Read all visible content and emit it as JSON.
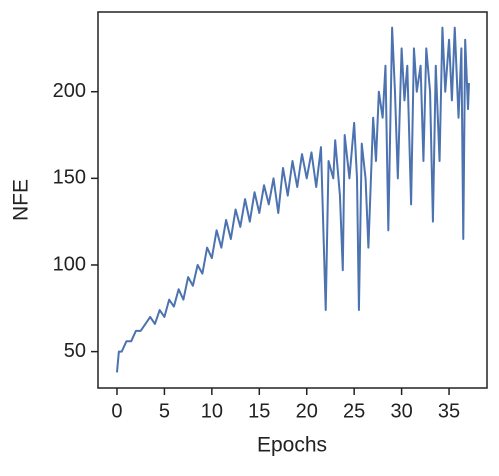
{
  "chart_data": {
    "type": "line",
    "xlabel": "Epochs",
    "ylabel": "NFE",
    "xlim": [
      -2,
      39
    ],
    "ylim": [
      29,
      246
    ],
    "xticks": [
      0,
      5,
      10,
      15,
      20,
      25,
      30,
      35
    ],
    "yticks": [
      50,
      100,
      150,
      200
    ],
    "series": [
      {
        "name": "NFE",
        "color": "#4c72b0",
        "x": [
          0,
          0.2,
          0.5,
          1,
          1.5,
          2,
          2.5,
          3,
          3.5,
          4,
          4.5,
          5,
          5.5,
          6,
          6.5,
          7,
          7.5,
          8,
          8.5,
          9,
          9.5,
          10,
          10.5,
          11,
          11.5,
          12,
          12.5,
          13,
          13.5,
          14,
          14.5,
          15,
          15.5,
          16,
          16.5,
          17,
          17.5,
          18,
          18.5,
          19,
          19.5,
          20,
          20.5,
          21,
          21.5,
          22,
          22.3,
          22.8,
          23,
          23.5,
          23.8,
          24,
          24.5,
          25,
          25.3,
          25.5,
          25.8,
          26.2,
          26.5,
          27,
          27.3,
          27.6,
          28,
          28.3,
          28.6,
          29,
          29.3,
          29.6,
          30,
          30.3,
          30.6,
          31,
          31.3,
          31.6,
          32,
          32.3,
          32.6,
          33,
          33.3,
          33.6,
          34,
          34.3,
          34.6,
          35,
          35.3,
          35.6,
          36,
          36.3,
          36.5,
          36.7,
          37,
          37.1
        ],
        "values": [
          38,
          50,
          50,
          56,
          56,
          62,
          62,
          66,
          70,
          66,
          74,
          70,
          80,
          76,
          86,
          80,
          93,
          88,
          100,
          95,
          110,
          104,
          120,
          110,
          126,
          115,
          132,
          122,
          138,
          125,
          142,
          130,
          146,
          135,
          150,
          130,
          156,
          140,
          160,
          145,
          164,
          150,
          165,
          145,
          168,
          74,
          160,
          150,
          172,
          140,
          97,
          175,
          150,
          182,
          150,
          74,
          170,
          150,
          110,
          185,
          160,
          200,
          185,
          215,
          120,
          237,
          200,
          150,
          225,
          195,
          215,
          135,
          225,
          200,
          215,
          160,
          225,
          200,
          125,
          215,
          160,
          237,
          200,
          230,
          195,
          237,
          185,
          225,
          115,
          230,
          190,
          205
        ]
      }
    ]
  }
}
